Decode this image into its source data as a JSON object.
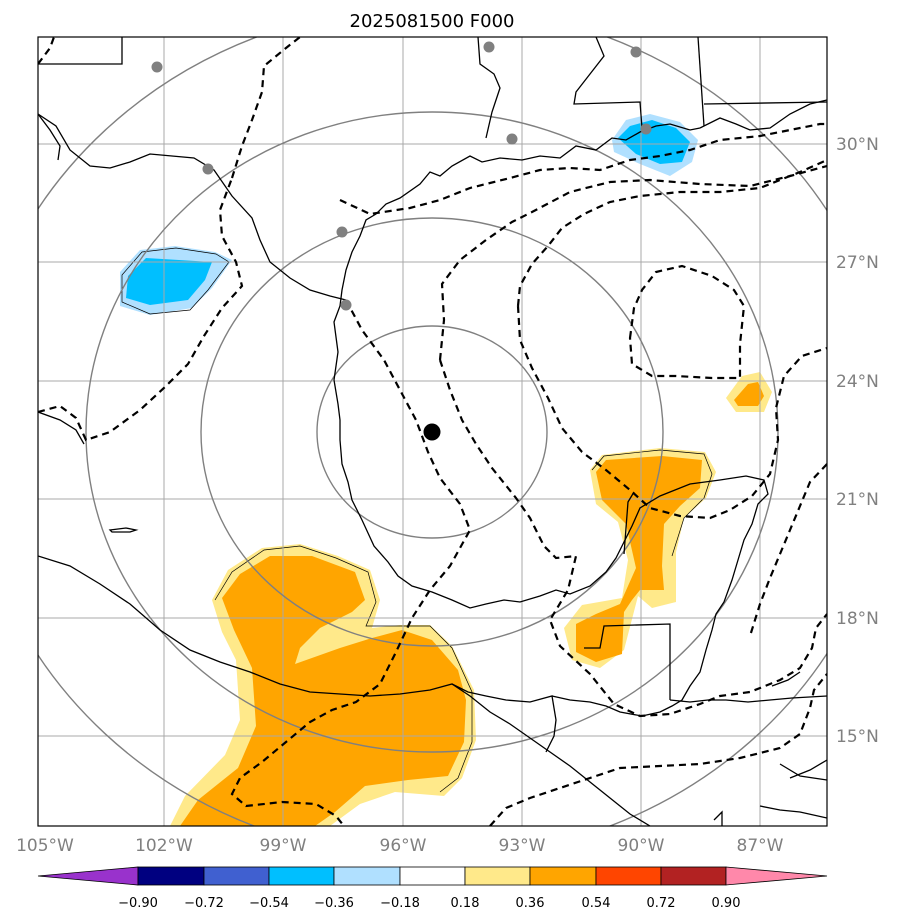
{
  "title": "2025081500 F000",
  "map": {
    "lon_range": [
      -105.3,
      -84.2
    ],
    "lat_range": [
      12.3,
      32.3
    ],
    "lon_ticks": [
      {
        "value": -105,
        "label": "105°W"
      },
      {
        "value": -102,
        "label": "102°W"
      },
      {
        "value": -99,
        "label": "99°W"
      },
      {
        "value": -96,
        "label": "96°W"
      },
      {
        "value": -93,
        "label": "93°W"
      },
      {
        "value": -90,
        "label": "90°W"
      },
      {
        "value": -87,
        "label": "87°W"
      }
    ],
    "lat_ticks": [
      {
        "value": 15,
        "label": "15°N"
      },
      {
        "value": 18,
        "label": "18°N"
      },
      {
        "value": 21,
        "label": "21°N"
      },
      {
        "value": 24,
        "label": "24°N"
      },
      {
        "value": 27,
        "label": "27°N"
      },
      {
        "value": 30,
        "label": "30°N"
      }
    ],
    "center": {
      "lon": -95.3,
      "lat": 22.5
    },
    "grid": true,
    "colors": {
      "grid": "#a9a9a9",
      "range_rings": "#808080",
      "stations": "#808080",
      "coast": "#000000",
      "contour": "#000000",
      "center": "#000000"
    }
  },
  "colorbar": {
    "levels": [
      -0.9,
      -0.72,
      -0.54,
      -0.36,
      -0.18,
      0.18,
      0.36,
      0.54,
      0.72,
      0.9
    ],
    "labels": [
      "−0.90",
      "−0.72",
      "−0.54",
      "−0.36",
      "−0.18",
      "0.18",
      "0.36",
      "0.54",
      "0.72",
      "0.90"
    ],
    "under_color": "#9932cc",
    "over_color": "#ff88aa",
    "bin_colors": [
      "#000080",
      "#4060d0",
      "#00bfff",
      "#b0e0ff",
      "#ffffff",
      "#ffe98a",
      "#ffa500",
      "#ff4500",
      "#b22222"
    ]
  }
}
